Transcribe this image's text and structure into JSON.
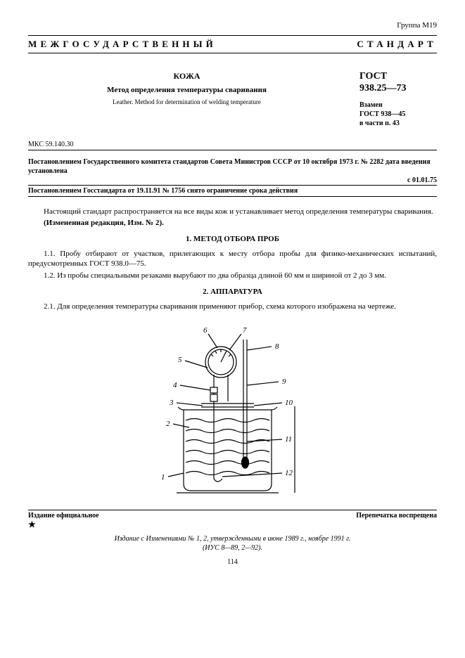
{
  "group": "Группа М19",
  "banner": "МЕЖГОСУДАРСТВЕННЫЙ СТАНДАРТ",
  "title": {
    "subject": "КОЖА",
    "method": "Метод определения температуры сваривания",
    "en": "Leather. Method for determination of welding temperature"
  },
  "gost": {
    "label": "ГОСТ",
    "number": "938.25—73",
    "replaces": "Взамен\nГОСТ 938—45\nв части п. 43"
  },
  "mks": "МКС 59.140.30",
  "decree1": "Постановлением Государственного комитета стандартов Совета Министров СССР от 10 октября 1973 г. № 2282 дата введения установлена",
  "effective": "с 01.01.75",
  "decree2": "Постановлением Госстандарта от 19.11.91 № 1756 снято ограничение срока действия",
  "intro": {
    "p1": "Настоящий стандарт распространяется на все виды кож и устанавливает метод определения температуры сваривания.",
    "p2": "(Измененная редакция, Изм. № 2)."
  },
  "section1": {
    "heading": "1.  МЕТОД ОТБОРА ПРОБ",
    "p1": "1.1.  Пробу отбирают от участков, прилегающих к месту отбора пробы для физико-механических испытаний, предусмотренных ГОСТ 938.0—75.",
    "p2": "1.2.  Из пробы специальными резаками вырубают по два образца длиной 60 мм и шириной от 2 до 3 мм."
  },
  "section2": {
    "heading": "2.  АППАРАТУРА",
    "p1": "2.1.  Для определения температуры сваривания применяют прибор, схема которого изображена на чертеже."
  },
  "diagram": {
    "labels": [
      "1",
      "2",
      "3",
      "4",
      "5",
      "6",
      "7",
      "8",
      "9",
      "10",
      "11",
      "12"
    ],
    "stroke": "#000000",
    "fill": "#ffffff",
    "wave_fill": "none"
  },
  "footer": {
    "official": "Издание официальное",
    "noreprint": "Перепечатка воспрещена",
    "edition_note1": "Издание с Изменениями № 1, 2, утвержденными в июне 1989 г., ноябре 1991 г.",
    "edition_note2": "(ИУС 8—89, 2—92).",
    "page": "114"
  }
}
